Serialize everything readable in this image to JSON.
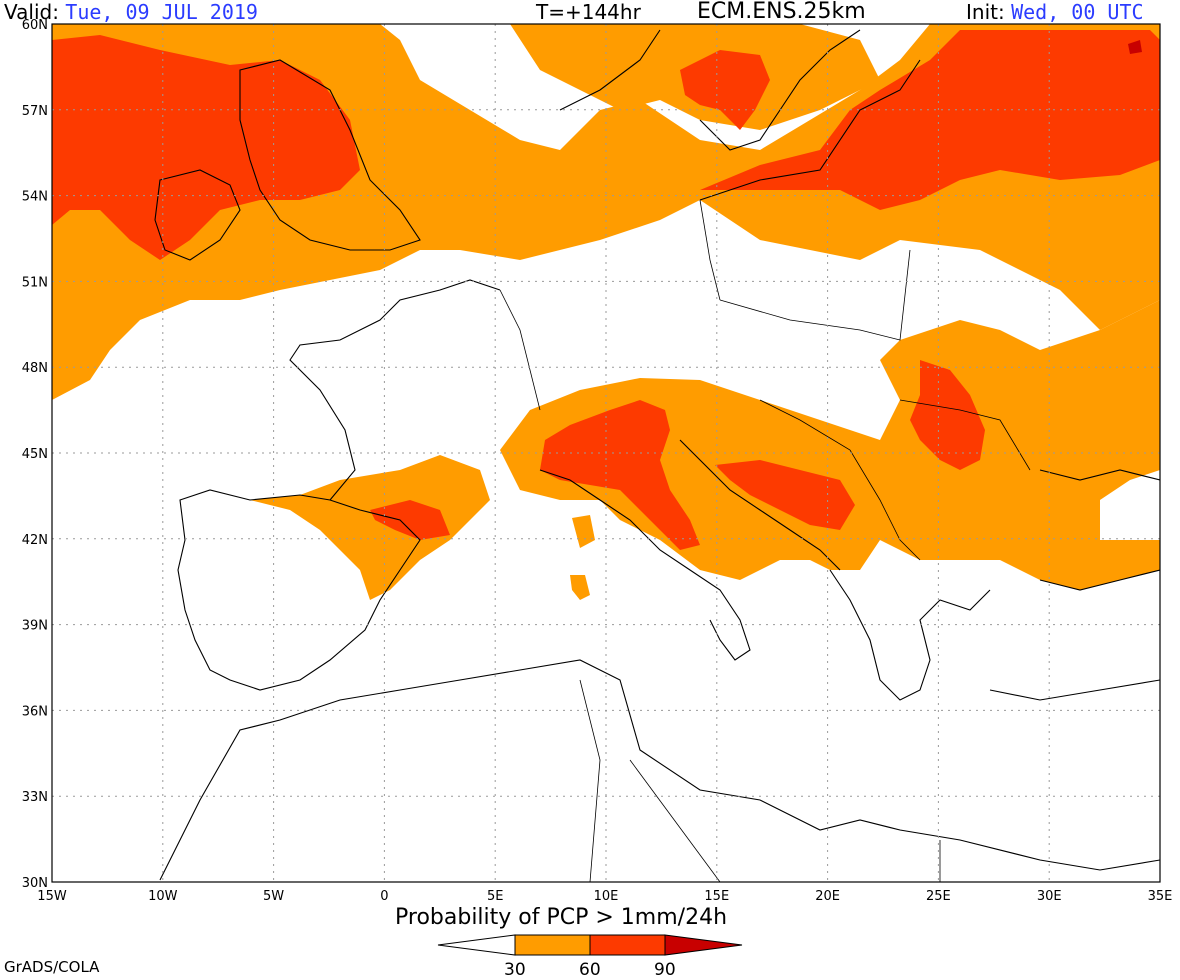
{
  "header": {
    "valid_label": "Valid:",
    "valid_value": "Tue, 09 JUL 2019",
    "lead_time": "T=+144hr",
    "model": "ECM.ENS.25km",
    "init_label": "Init:",
    "init_value": "Wed, 00 UTC"
  },
  "map": {
    "lon_range": [
      -15,
      35
    ],
    "lat_range": [
      30,
      60
    ],
    "lon_ticks": [
      "15W",
      "10W",
      "5W",
      "0",
      "5E",
      "10E",
      "15E",
      "20E",
      "25E",
      "30E",
      "35E"
    ],
    "lat_ticks": [
      "60N",
      "57N",
      "54N",
      "51N",
      "48N",
      "45N",
      "42N",
      "39N",
      "36N",
      "33N",
      "30N"
    ],
    "grid": true,
    "colors": {
      "band_30_60": "#ff9c00",
      "band_60_90": "#fd3a00",
      "band_90_plus": "#c80000",
      "land_outline": "#000000",
      "grid": "#9a9a9a"
    }
  },
  "colorbar": {
    "title": "Probability of PCP > 1mm/24h",
    "ticks": [
      "30",
      "60",
      "90"
    ]
  },
  "footer": {
    "credit": "GrADS/COLA"
  }
}
